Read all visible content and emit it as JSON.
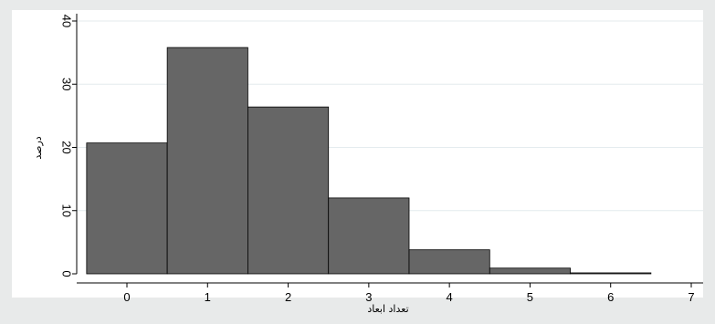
{
  "chart_data": {
    "type": "bar",
    "title": "",
    "xlabel": "تعداد ابعاد",
    "ylabel": "درصد",
    "bins": [
      {
        "x": 0,
        "value": 20.7
      },
      {
        "x": 1,
        "value": 35.8
      },
      {
        "x": 2,
        "value": 26.4
      },
      {
        "x": 3,
        "value": 12.0
      },
      {
        "x": 4,
        "value": 3.8
      },
      {
        "x": 5,
        "value": 0.9
      },
      {
        "x": 6,
        "value": 0.15
      }
    ],
    "bin_width": 1,
    "xlim": [
      -0.5,
      7
    ],
    "ylim": [
      0,
      40
    ],
    "xticks": [
      0,
      1,
      2,
      3,
      4,
      5,
      6,
      7
    ],
    "yticks": [
      0,
      10,
      20,
      30,
      40
    ],
    "grid": "horizontal",
    "legend": "none",
    "colors": {
      "bar_fill": "#666666",
      "bar_stroke": "#000000",
      "plot_background": "#ffffff",
      "outer_background": "#e8eaea",
      "grid": "#e4ebee"
    }
  }
}
